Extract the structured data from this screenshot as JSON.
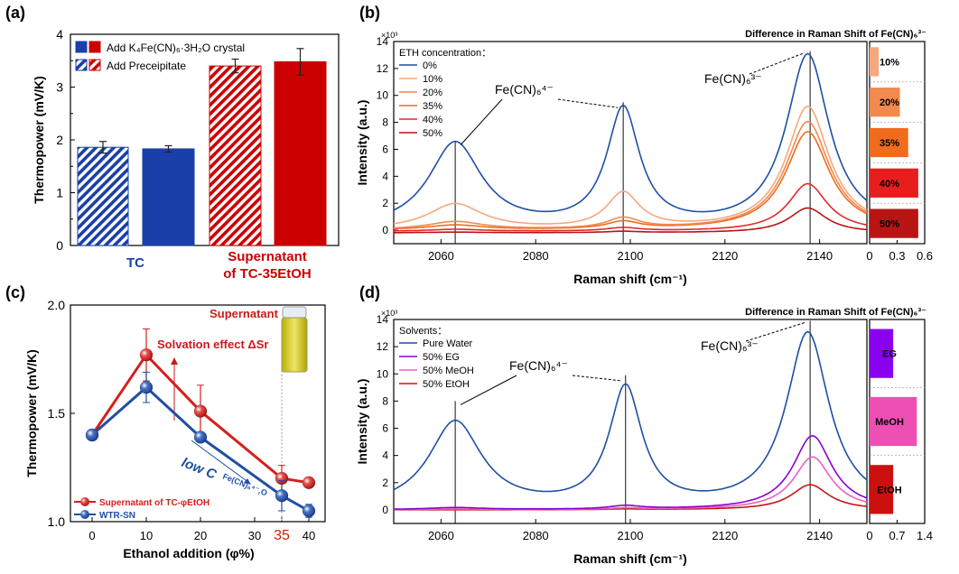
{
  "figure": {
    "panel_labels": [
      "(a)",
      "(b)",
      "(c)",
      "(d)"
    ]
  },
  "chart_data": [
    {
      "panel": "(a)",
      "type": "bar",
      "ylabel": "Thermopower (mV/K)",
      "ylim": [
        0,
        4
      ],
      "yticks": [
        "0",
        "1",
        "2",
        "3",
        "4"
      ],
      "group_labels": [
        "TC",
        "Supernatant",
        "of TC-35EtOH"
      ],
      "legend": [
        {
          "text": "Add K₄Fe(CN)₆·3H₂O crystal",
          "colors": [
            "#1a3fa8",
            "#cc0000"
          ],
          "style": "solid"
        },
        {
          "text": "Add Preceipitate",
          "colors": [
            "#1a3fa8",
            "#cc0000"
          ],
          "style": "hatched"
        }
      ],
      "bars": [
        {
          "group": "TC",
          "style": "hatched",
          "color": "#1a3fa8",
          "value": 1.86,
          "error": 0.11
        },
        {
          "group": "TC",
          "style": "solid",
          "color": "#1a3fa8",
          "value": 1.83,
          "error": 0.06
        },
        {
          "group": "Supernatant of TC-35EtOH",
          "style": "hatched",
          "color": "#cc0000",
          "value": 3.4,
          "error": 0.13
        },
        {
          "group": "Supernatant of TC-35EtOH",
          "style": "solid",
          "color": "#cc0000",
          "value": 3.48,
          "error": 0.25
        }
      ]
    },
    {
      "panel": "(b)",
      "type": "line",
      "xlabel": "Raman shift (cm⁻¹)",
      "ylabel": "Intensity (a.u.)",
      "y_multiplier": "×10³",
      "xlim": [
        2050,
        2150
      ],
      "ylim": [
        -1,
        14
      ],
      "xticks": [
        "2060",
        "2080",
        "2100",
        "2120",
        "2140"
      ],
      "yticks": [
        "0",
        "2",
        "4",
        "6",
        "8",
        "10",
        "12",
        "14"
      ],
      "legend_title": "ETH concentration：",
      "annotations": [
        "Fe(CN)₆⁴⁻",
        "Fe(CN)₆³⁻"
      ],
      "peak_lines_x": [
        2063,
        2098.5,
        2138
      ],
      "series": [
        {
          "name": "0%",
          "color": "#1f4fa3",
          "peaks": [
            [
              2063,
              6.4,
              6.8
            ],
            [
              2098.5,
              8.8,
              4.2
            ],
            [
              2137.5,
              12.95,
              5.5
            ]
          ],
          "baseline": 0
        },
        {
          "name": "10%",
          "color": "#f5a87e",
          "peaks": [
            [
              2063,
              1.9,
              7.0
            ],
            [
              2098.5,
              2.65,
              4.2
            ],
            [
              2137.5,
              9.15,
              5.5
            ]
          ],
          "baseline": 0
        },
        {
          "name": "20%",
          "color": "#f2894f",
          "peaks": [
            [
              2063,
              0.6,
              7.0
            ],
            [
              2098.5,
              0.8,
              4.2
            ],
            [
              2137.5,
              8.05,
              5.6
            ]
          ],
          "baseline": 0
        },
        {
          "name": "35%",
          "color": "#ee6c1c",
          "peaks": [
            [
              2063,
              0.35,
              7.0
            ],
            [
              2098.5,
              0.55,
              4.2
            ],
            [
              2137.5,
              7.3,
              5.6
            ]
          ],
          "baseline": 0
        },
        {
          "name": "40%",
          "color": "#e22a2a",
          "peaks": [
            [
              2063,
              0.15,
              7.0
            ],
            [
              2098.5,
              0.25,
              4.2
            ],
            [
              2137.5,
              3.55,
              5.0
            ]
          ],
          "baseline": -0.1
        },
        {
          "name": "50%",
          "color": "#b81414",
          "peaks": [
            [
              2063,
              0.05,
              7.0
            ],
            [
              2098.5,
              0.1,
              4.2
            ],
            [
              2137.5,
              1.85,
              4.8
            ]
          ],
          "baseline": -0.2
        }
      ]
    },
    {
      "panel": "(b) inset",
      "type": "bar",
      "title": "Difference in Raman Shift of Fe(CN)₆³⁻",
      "xlim": [
        0,
        0.6
      ],
      "xticks": [
        "0",
        "0.3",
        "0.6"
      ],
      "bars": [
        {
          "label": "10%",
          "value": 0.1,
          "color": "#f5a87e"
        },
        {
          "label": "20%",
          "value": 0.33,
          "color": "#f2894f"
        },
        {
          "label": "35%",
          "value": 0.42,
          "color": "#ee6c1c"
        },
        {
          "label": "40%",
          "value": 0.53,
          "color": "#e61e1e"
        },
        {
          "label": "50%",
          "value": 0.53,
          "color": "#b81414"
        }
      ]
    },
    {
      "panel": "(c)",
      "type": "scatter",
      "xlabel": "Ethanol addition (φ%)",
      "ylabel": "Thermopower (mV/K)",
      "xlim": [
        -4,
        43
      ],
      "ylim": [
        1.0,
        2.0
      ],
      "xticks": [
        "0",
        "10",
        "20",
        "30",
        "35",
        "40"
      ],
      "xtick_values": [
        0,
        10,
        20,
        30,
        35,
        40
      ],
      "yticks": [
        "1.0",
        "1.5",
        "2.0"
      ],
      "annotations": [
        "Supernatant",
        "Solvation effect ΔSr",
        "low C"
      ],
      "annotation_subscript": "Fe(CN)₆⁴⁻,O",
      "series": [
        {
          "name": "Supernatant of TC-φEtOH",
          "color": "#d61e1e",
          "points": [
            [
              0,
              1.4,
              0
            ],
            [
              10,
              1.77,
              0.12
            ],
            [
              20,
              1.51,
              0.12
            ],
            [
              35,
              1.2,
              0.06
            ],
            [
              40,
              1.18,
              0
            ]
          ]
        },
        {
          "name": "WTR-SN",
          "color": "#1f4fa3",
          "points": [
            [
              0,
              1.4,
              0
            ],
            [
              10,
              1.62,
              0.07
            ],
            [
              20,
              1.39,
              0
            ],
            [
              35,
              1.12,
              0.07
            ],
            [
              40,
              1.05,
              0.03
            ]
          ]
        }
      ]
    },
    {
      "panel": "(d)",
      "type": "line",
      "xlabel": "Raman shift (cm⁻¹)",
      "ylabel": "Intensity (a.u.)",
      "y_multiplier": "×10³",
      "xlim": [
        2050,
        2150
      ],
      "ylim": [
        -1,
        14
      ],
      "xticks": [
        "2060",
        "2080",
        "2100",
        "2120",
        "2140"
      ],
      "yticks": [
        "0",
        "2",
        "4",
        "6",
        "8",
        "10",
        "12",
        "14"
      ],
      "legend_title": "Solvents：",
      "annotations": [
        "Fe(CN)₆⁴⁻",
        "Fe(CN)₆³⁻"
      ],
      "peak_lines_x": [
        2063,
        2099,
        2138
      ],
      "series": [
        {
          "name": "Pure Water",
          "color": "#1f4fa3",
          "peaks": [
            [
              2063,
              6.4,
              6.8
            ],
            [
              2099,
              8.8,
              4.2
            ],
            [
              2137.5,
              12.95,
              5.5
            ]
          ],
          "baseline": 0
        },
        {
          "name": "50% EG",
          "color": "#8a00d4",
          "peaks": [
            [
              2063,
              0.15,
              7.0
            ],
            [
              2099,
              0.25,
              4.2
            ],
            [
              2138.5,
              5.45,
              5.0
            ]
          ],
          "baseline": 0
        },
        {
          "name": "50% MeOH",
          "color": "#ee5fc6",
          "peaks": [
            [
              2063,
              0.05,
              7.0
            ],
            [
              2099,
              0.1,
              4.2
            ],
            [
              2138.5,
              3.9,
              4.8
            ]
          ],
          "baseline": 0
        },
        {
          "name": "50% EtOH",
          "color": "#c81414",
          "peaks": [
            [
              2063,
              0.0,
              7.0
            ],
            [
              2099,
              0.05,
              4.2
            ],
            [
              2138,
              1.85,
              4.8
            ]
          ],
          "baseline": 0
        }
      ]
    },
    {
      "panel": "(d) inset",
      "type": "bar",
      "title": "Difference in Raman Shift of Fe(CN)₆³⁻",
      "xlim": [
        0,
        1.4
      ],
      "xticks": [
        "0",
        "0.7",
        "1.4"
      ],
      "bars": [
        {
          "label": "EG",
          "value": 0.6,
          "color": "#8a00f0"
        },
        {
          "label": "MeOH",
          "value": 1.2,
          "color": "#ee4fb4"
        },
        {
          "label": "EtOH",
          "value": 0.6,
          "color": "#cc1010"
        }
      ]
    }
  ]
}
